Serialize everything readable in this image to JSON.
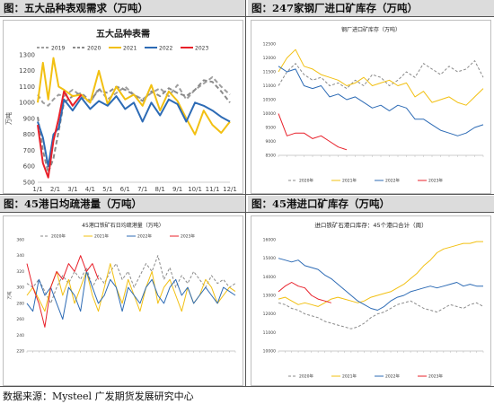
{
  "panels": [
    {
      "header": "图：五大品种表观需求（万吨）"
    },
    {
      "header": "图：247家钢厂进口矿库存（万吨）"
    },
    {
      "header": "图：45港日均疏港量（万吨）"
    },
    {
      "header": "图：45港进口矿库存（万吨）"
    }
  ],
  "source": "数据来源：Mysteel 广发期货发展研究中心",
  "colors": {
    "2019": "#9e9e9e",
    "2020": "#8a8a8a",
    "2021": "#f2c012",
    "2022": "#2d6bb5",
    "2023": "#e8202a"
  },
  "chart_data": [
    {
      "type": "line",
      "title": "五大品种表需",
      "ylabel": "万吨",
      "ylim": [
        500,
        1300
      ],
      "yticks": [
        500,
        600,
        700,
        800,
        900,
        1000,
        1100,
        1200,
        1300
      ],
      "xticks": [
        "1/1",
        "2/1",
        "3/1",
        "4/1",
        "5/1",
        "6/1",
        "7/1",
        "8/1",
        "9/1",
        "10/1",
        "11/1",
        "12/1"
      ],
      "x": [
        0.0,
        0.3,
        0.6,
        0.9,
        1.2,
        1.5,
        2.0,
        2.5,
        3.0,
        3.5,
        4.0,
        4.5,
        5.0,
        5.5,
        6.0,
        6.5,
        7.0,
        7.5,
        8.0,
        8.5,
        9.0,
        9.5,
        10.0,
        10.5,
        11.0
      ],
      "series": [
        {
          "name": "2019",
          "style": "dashed",
          "values": [
            1050,
            1000,
            980,
            1020,
            1050,
            1040,
            1080,
            1040,
            1000,
            1090,
            1020,
            1060,
            1100,
            1050,
            1020,
            1060,
            1090,
            1040,
            1110,
            1020,
            1080,
            1120,
            1160,
            1100,
            1050
          ]
        },
        {
          "name": "2020",
          "style": "dashed",
          "values": [
            910,
            700,
            560,
            650,
            820,
            1000,
            1040,
            1060,
            1010,
            1080,
            1060,
            1100,
            1080,
            1050,
            1010,
            1070,
            1040,
            1090,
            1060,
            1040,
            1080,
            1140,
            1130,
            1070,
            1000
          ]
        },
        {
          "name": "2021",
          "style": "solid",
          "values": [
            1000,
            1250,
            1020,
            1280,
            1100,
            1080,
            1040,
            1050,
            1000,
            1200,
            990,
            1100,
            1020,
            1050,
            980,
            1110,
            950,
            1070,
            1010,
            900,
            800,
            950,
            860,
            810,
            880
          ]
        },
        {
          "name": "2022",
          "style": "solid",
          "values": [
            880,
            780,
            600,
            800,
            840,
            1020,
            950,
            1030,
            960,
            1010,
            980,
            1040,
            960,
            1000,
            880,
            1000,
            920,
            1020,
            990,
            880,
            1000,
            980,
            950,
            910,
            880
          ]
        },
        {
          "name": "2023",
          "style": "solid",
          "values": [
            860,
            620,
            530,
            760,
            900,
            1070,
            980,
            1050,
            null,
            null,
            null,
            null,
            null,
            null,
            null,
            null,
            null,
            null,
            null,
            null,
            null,
            null,
            null,
            null,
            null
          ]
        }
      ]
    },
    {
      "type": "line",
      "title": "钢厂进口矿库存（万吨）",
      "ylim": [
        8500,
        12500
      ],
      "yticks": [
        8500,
        9000,
        9500,
        10000,
        10500,
        11000,
        11500,
        12000,
        12500
      ],
      "x": [
        0,
        1,
        2,
        3,
        4,
        5,
        6,
        7,
        8,
        9,
        10,
        11,
        12,
        13,
        14,
        15,
        16,
        17,
        18,
        19,
        20,
        21,
        22,
        23,
        24
      ],
      "series": [
        {
          "name": "2020年",
          "style": "dashed",
          "values": [
            11000,
            11500,
            11800,
            11400,
            11200,
            11300,
            11000,
            11100,
            10900,
            11200,
            11000,
            11400,
            11300,
            11000,
            11200,
            11500,
            11300,
            11800,
            11600,
            11400,
            11700,
            11500,
            11600,
            11900,
            11300
          ]
        },
        {
          "name": "2021年",
          "style": "solid",
          "values": [
            11500,
            12000,
            12300,
            11700,
            11600,
            11400,
            11300,
            11200,
            11000,
            11100,
            11300,
            11000,
            11100,
            11200,
            11000,
            11100,
            10600,
            10800,
            10400,
            10500,
            10600,
            10400,
            10300,
            10600,
            10900
          ]
        },
        {
          "name": "2022年",
          "style": "solid",
          "values": [
            11700,
            11500,
            11600,
            11000,
            10900,
            11000,
            10600,
            10700,
            10500,
            10600,
            10400,
            10200,
            10300,
            10100,
            10300,
            10200,
            9800,
            9800,
            9600,
            9400,
            9300,
            9200,
            9300,
            9500,
            9600
          ]
        },
        {
          "name": "2023年",
          "style": "solid",
          "values": [
            10000,
            9200,
            9300,
            9300,
            9100,
            9200,
            9000,
            8800,
            8700,
            null,
            null,
            null,
            null,
            null,
            null,
            null,
            null,
            null,
            null,
            null,
            null,
            null,
            null,
            null,
            null
          ]
        }
      ]
    },
    {
      "type": "line",
      "title": "45港口铁矿石日均疏港量（万吨）",
      "ylabel": "万吨",
      "ylim": [
        220,
        360
      ],
      "yticks": [
        220,
        240,
        260,
        280,
        300,
        320,
        340,
        360
      ],
      "x": [
        0,
        1,
        2,
        3,
        4,
        5,
        6,
        7,
        8,
        9,
        10,
        11,
        12,
        13,
        14,
        15,
        16,
        17,
        18,
        19,
        20,
        21,
        22,
        23,
        24,
        25,
        26,
        27,
        28,
        29,
        30,
        31,
        32,
        33,
        34,
        35
      ],
      "series": [
        {
          "name": "2020年",
          "style": "dashed",
          "values": [
            305,
            300,
            310,
            295,
            280,
            300,
            315,
            305,
            320,
            310,
            325,
            300,
            315,
            305,
            320,
            330,
            310,
            320,
            300,
            315,
            330,
            320,
            340,
            310,
            325,
            300,
            315,
            305,
            320,
            310,
            300,
            315,
            305,
            310,
            300,
            305
          ]
        },
        {
          "name": "2021年",
          "style": "solid",
          "values": [
            290,
            300,
            285,
            270,
            300,
            320,
            290,
            310,
            280,
            300,
            320,
            290,
            270,
            300,
            330,
            300,
            280,
            310,
            290,
            270,
            300,
            320,
            280,
            300,
            310,
            290,
            270,
            300,
            280,
            290,
            310,
            300,
            280,
            290,
            300,
            295
          ]
        },
        {
          "name": "2022年",
          "style": "solid",
          "values": [
            280,
            270,
            310,
            290,
            300,
            280,
            260,
            300,
            290,
            270,
            320,
            300,
            280,
            290,
            310,
            300,
            270,
            300,
            290,
            280,
            300,
            310,
            290,
            280,
            300,
            310,
            290,
            300,
            280,
            290,
            300,
            290,
            280,
            300,
            295,
            290
          ]
        },
        {
          "name": "2023年",
          "style": "solid",
          "values": [
            330,
            300,
            280,
            250,
            300,
            320,
            310,
            330,
            320,
            340,
            320,
            330,
            310,
            null,
            null,
            null,
            null,
            null,
            null,
            null,
            null,
            null,
            null,
            null,
            null,
            null,
            null,
            null,
            null,
            null,
            null,
            null,
            null,
            null,
            null,
            null
          ]
        }
      ]
    },
    {
      "type": "line",
      "title": "进口铁矿石港口库存：45个港口合计（周）",
      "ylim": [
        10000,
        16000
      ],
      "yticks": [
        10000,
        11000,
        12000,
        13000,
        14000,
        15000,
        16000
      ],
      "x": [
        0,
        1,
        2,
        3,
        4,
        5,
        6,
        7,
        8,
        9,
        10,
        11,
        12,
        13,
        14,
        15,
        16,
        17,
        18,
        19,
        20,
        21,
        22,
        23,
        24,
        25,
        26,
        27,
        28,
        29,
        30,
        31
      ],
      "series": [
        {
          "name": "2020年",
          "style": "dashed",
          "values": [
            12600,
            12500,
            12300,
            12200,
            12000,
            11900,
            11800,
            11600,
            11500,
            11400,
            11300,
            11200,
            11300,
            11500,
            11800,
            12000,
            12100,
            12300,
            12500,
            12600,
            12700,
            12500,
            12300,
            12200,
            12100,
            12300,
            12500,
            12400,
            12300,
            12500,
            12600,
            12400
          ]
        },
        {
          "name": "2021年",
          "style": "solid",
          "values": [
            12800,
            12900,
            12700,
            12500,
            12600,
            12500,
            12400,
            12600,
            12800,
            12900,
            12800,
            12700,
            12600,
            12700,
            12900,
            13000,
            13100,
            13200,
            13400,
            13600,
            13900,
            14200,
            14600,
            14900,
            15300,
            15500,
            15600,
            15700,
            15800,
            15800,
            15900,
            15900
          ]
        },
        {
          "name": "2022年",
          "style": "solid",
          "values": [
            15000,
            14900,
            14800,
            14900,
            14600,
            14500,
            14400,
            14100,
            13900,
            13600,
            13300,
            13000,
            12700,
            12500,
            12300,
            12200,
            12400,
            12700,
            12900,
            13000,
            13200,
            13300,
            13400,
            13500,
            13400,
            13500,
            13600,
            13700,
            13500,
            13600,
            13500,
            13500
          ]
        },
        {
          "name": "2023年",
          "style": "solid",
          "values": [
            13200,
            13500,
            13700,
            13500,
            13400,
            13000,
            12800,
            12700,
            12600,
            null,
            null,
            null,
            null,
            null,
            null,
            null,
            null,
            null,
            null,
            null,
            null,
            null,
            null,
            null,
            null,
            null,
            null,
            null,
            null,
            null,
            null,
            null
          ]
        }
      ]
    }
  ]
}
